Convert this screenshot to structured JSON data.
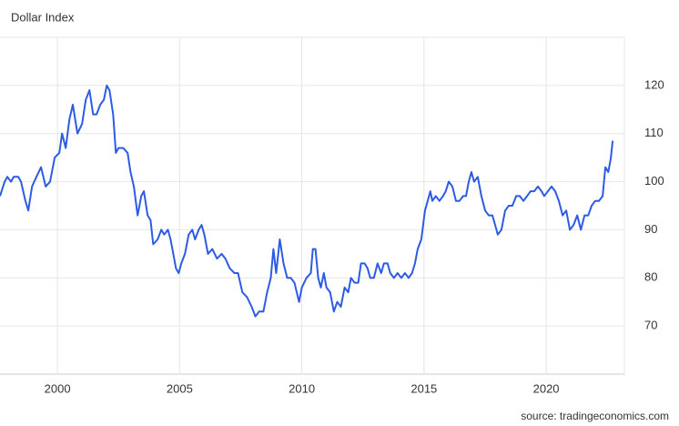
{
  "chart_data": {
    "type": "line",
    "title": "Dollar Index",
    "source": "source: tradingeconomics.com",
    "x": [
      1997.65,
      1997.84,
      1997.95,
      1998.1,
      1998.21,
      1998.4,
      1998.51,
      1998.69,
      1998.81,
      1998.96,
      1999.14,
      1999.33,
      1999.52,
      1999.7,
      1999.89,
      2000.08,
      2000.19,
      2000.34,
      2000.49,
      2000.63,
      2000.82,
      2001.01,
      2001.16,
      2001.31,
      2001.46,
      2001.6,
      2001.75,
      2001.9,
      2002.02,
      2002.13,
      2002.28,
      2002.39,
      2002.5,
      2002.69,
      2002.87,
      2002.99,
      2003.13,
      2003.28,
      2003.43,
      2003.54,
      2003.69,
      2003.81,
      2003.92,
      2004.1,
      2004.25,
      2004.37,
      2004.52,
      2004.63,
      2004.74,
      2004.85,
      2004.96,
      2005.07,
      2005.22,
      2005.37,
      2005.52,
      2005.63,
      2005.78,
      2005.9,
      2006.01,
      2006.16,
      2006.34,
      2006.53,
      2006.72,
      2006.87,
      2007.05,
      2007.24,
      2007.39,
      2007.57,
      2007.76,
      2007.95,
      2008.1,
      2008.25,
      2008.43,
      2008.58,
      2008.73,
      2008.84,
      2008.95,
      2009.1,
      2009.25,
      2009.4,
      2009.55,
      2009.7,
      2009.89,
      2010.0,
      2010.19,
      2010.37,
      2010.45,
      2010.56,
      2010.67,
      2010.78,
      2010.9,
      2011.01,
      2011.16,
      2011.31,
      2011.45,
      2011.6,
      2011.75,
      2011.9,
      2012.01,
      2012.16,
      2012.31,
      2012.42,
      2012.57,
      2012.69,
      2012.8,
      2012.95,
      2013.1,
      2013.25,
      2013.36,
      2013.51,
      2013.62,
      2013.77,
      2013.92,
      2014.07,
      2014.22,
      2014.37,
      2014.51,
      2014.63,
      2014.74,
      2014.89,
      2015.04,
      2015.15,
      2015.26,
      2015.34,
      2015.48,
      2015.63,
      2015.78,
      2015.89,
      2016.01,
      2016.16,
      2016.31,
      2016.45,
      2016.6,
      2016.72,
      2016.83,
      2016.94,
      2017.05,
      2017.2,
      2017.35,
      2017.5,
      2017.65,
      2017.8,
      2017.91,
      2018.02,
      2018.17,
      2018.32,
      2018.47,
      2018.62,
      2018.77,
      2018.92,
      2019.07,
      2019.22,
      2019.36,
      2019.51,
      2019.66,
      2019.81,
      2019.92,
      2020.07,
      2020.22,
      2020.37,
      2020.52,
      2020.67,
      2020.82,
      2020.97,
      2021.12,
      2021.27,
      2021.42,
      2021.57,
      2021.72,
      2021.86,
      2022.01,
      2022.16,
      2022.31,
      2022.42,
      2022.54,
      2022.65,
      2022.72
    ],
    "series": [
      {
        "color": "#2d5be3",
        "values": [
          97,
          100,
          101,
          100,
          101,
          101,
          100,
          96,
          94,
          99,
          101,
          103,
          99,
          100,
          105,
          106,
          110,
          107,
          113,
          116,
          110,
          112,
          117,
          119,
          114,
          114,
          116,
          117,
          120,
          119,
          114,
          106,
          107,
          107,
          106,
          102,
          99,
          93,
          97,
          98,
          93,
          92,
          87,
          88,
          90,
          89,
          90,
          88,
          85,
          82,
          81,
          83,
          85,
          89,
          90,
          88,
          90,
          91,
          89,
          85,
          86,
          84,
          85,
          84,
          82,
          81,
          81,
          77,
          76,
          74,
          72,
          73,
          73,
          77,
          80,
          86,
          81,
          88,
          83,
          80,
          80,
          79,
          75,
          78,
          80,
          81,
          86,
          86,
          80,
          78,
          81,
          78,
          77,
          73,
          75,
          74,
          78,
          77,
          80,
          79,
          79,
          83,
          83,
          82,
          80,
          80,
          83,
          81,
          83,
          83,
          81,
          80,
          81,
          80,
          81,
          80,
          81,
          83,
          86,
          88,
          94,
          96,
          98,
          96,
          97,
          96,
          97,
          98,
          100,
          99,
          96,
          96,
          97,
          97,
          100,
          102,
          100,
          101,
          97,
          94,
          93,
          93,
          91,
          89,
          90,
          94,
          95,
          95,
          97,
          97,
          96,
          97,
          98,
          98,
          99,
          98,
          97,
          98,
          99,
          98,
          96,
          93,
          94,
          90,
          91,
          93,
          90,
          93,
          93,
          95,
          96,
          96,
          97,
          103,
          102,
          105,
          108.5
        ]
      }
    ],
    "xlim": [
      1997.65,
      2023.2
    ],
    "xticks": [
      2000,
      2005,
      2010,
      2015,
      2020
    ],
    "ylim": [
      60,
      130
    ],
    "yticks": [
      70,
      80,
      90,
      100,
      110,
      120
    ],
    "grid": true
  }
}
